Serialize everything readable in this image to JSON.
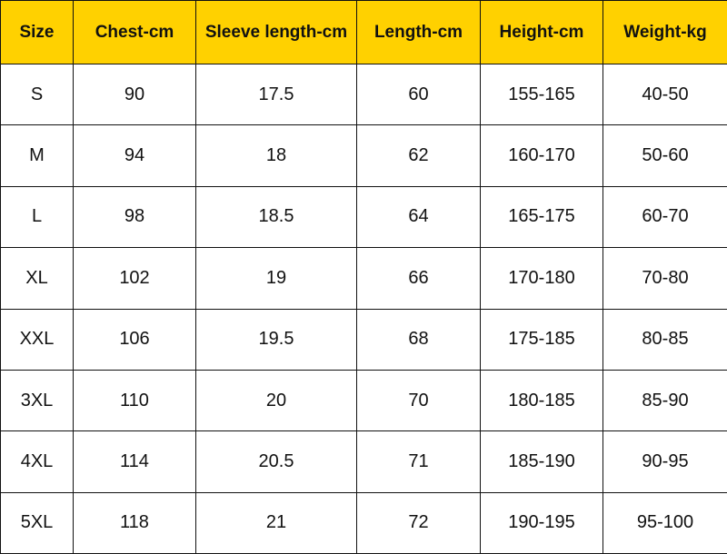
{
  "table": {
    "header": [
      "Size",
      "Chest-cm",
      "Sleeve length-cm",
      "Length-cm",
      "Height-cm",
      "Weight-kg"
    ],
    "rows": [
      [
        "S",
        "90",
        "17.5",
        "60",
        "155-165",
        "40-50"
      ],
      [
        "M",
        "94",
        "18",
        "62",
        "160-170",
        "50-60"
      ],
      [
        "L",
        "98",
        "18.5",
        "64",
        "165-175",
        "60-70"
      ],
      [
        "XL",
        "102",
        "19",
        "66",
        "170-180",
        "70-80"
      ],
      [
        "XXL",
        "106",
        "19.5",
        "68",
        "175-185",
        "80-85"
      ],
      [
        "3XL",
        "110",
        "20",
        "70",
        "180-185",
        "85-90"
      ],
      [
        "4XL",
        "114",
        "20.5",
        "71",
        "185-190",
        "90-95"
      ],
      [
        "5XL",
        "118",
        "21",
        "72",
        "190-195",
        "95-100"
      ]
    ]
  }
}
